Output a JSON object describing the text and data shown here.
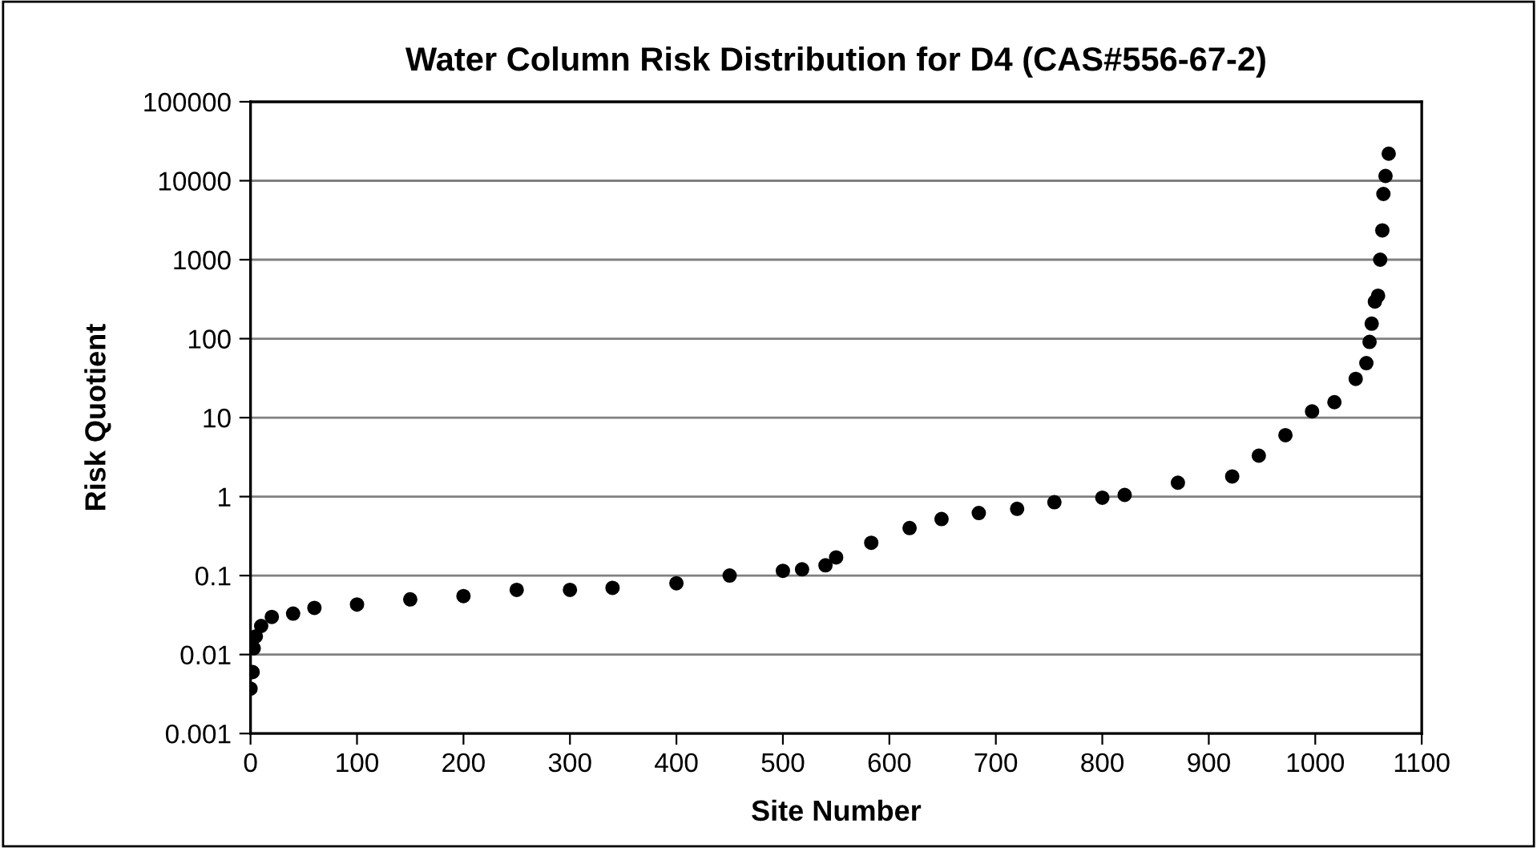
{
  "chart_data": {
    "type": "scatter",
    "title": "Water Column Risk Distribution for D4 (CAS#556-67-2)",
    "xlabel": "Site Number",
    "ylabel": "Risk Quotient",
    "series": [
      {
        "color": "#000000",
        "x": [
          0,
          2,
          3,
          5,
          10,
          20,
          40,
          60,
          100,
          150,
          200,
          250,
          300,
          340,
          400,
          450,
          500,
          518,
          540,
          550,
          583,
          619,
          649,
          684,
          720,
          755,
          800,
          821,
          871,
          922,
          947,
          972,
          997,
          1018,
          1038,
          1048,
          1051,
          1053,
          1056,
          1059,
          1061,
          1063,
          1064,
          1066,
          1069
        ],
        "values": [
          0.0037,
          0.006,
          0.012,
          0.017,
          0.023,
          0.03,
          0.033,
          0.039,
          0.043,
          0.05,
          0.055,
          0.066,
          0.066,
          0.07,
          0.08,
          0.1,
          0.115,
          0.12,
          0.135,
          0.17,
          0.26,
          0.4,
          0.52,
          0.62,
          0.7,
          0.85,
          0.97,
          1.05,
          1.5,
          1.8,
          3.3,
          6.0,
          12,
          15.7,
          31,
          49,
          91,
          155,
          295,
          350,
          1000,
          2350,
          6800,
          11500,
          22000
        ]
      }
    ],
    "log": "y",
    "marker": "circle",
    "grid": "y",
    "xlim": [
      0,
      1100
    ],
    "xticks": [
      0,
      100,
      200,
      300,
      400,
      500,
      600,
      700,
      800,
      900,
      1000,
      1100
    ],
    "ylim": [
      0.001,
      100000
    ],
    "yticks": [
      0.001,
      0.01,
      0.1,
      1,
      10,
      100,
      1000,
      10000,
      100000
    ]
  }
}
